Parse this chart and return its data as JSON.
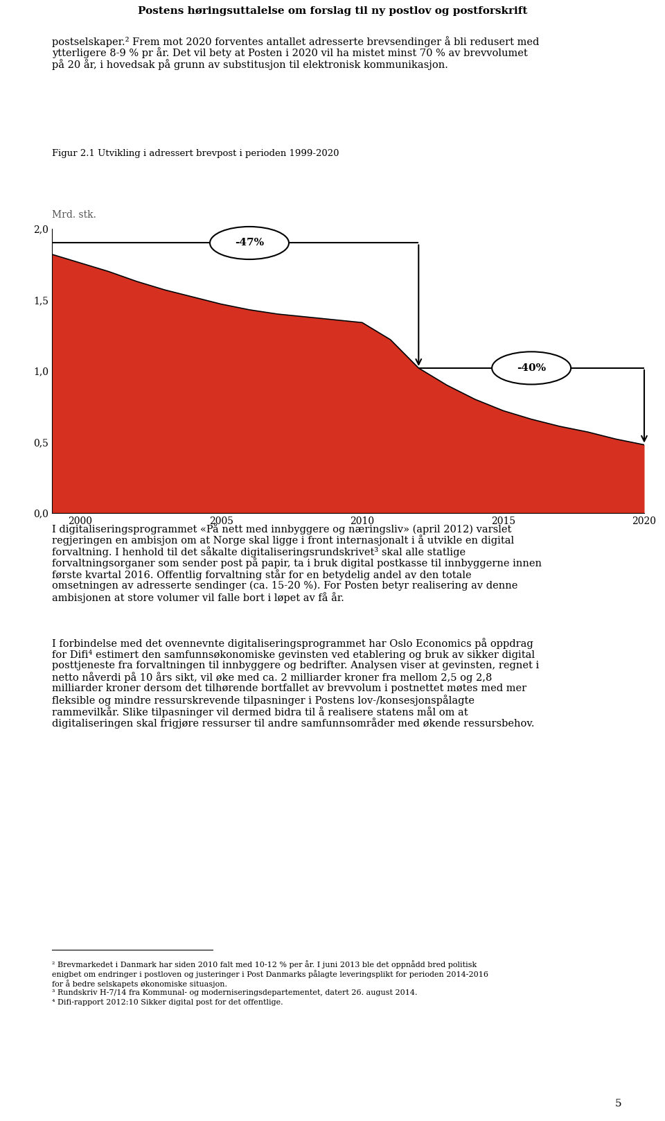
{
  "title_header": "Postens høringsuttalelse om forslag til ny postlov og postforskrift",
  "fig_label": "Figur 2.1 Utvikling i adressert brevpost i perioden 1999-2020",
  "ylabel": "Mrd. stk.",
  "xlim": [
    1999,
    2020
  ],
  "ylim": [
    0.0,
    2.0
  ],
  "yticks": [
    0.0,
    0.5,
    1.0,
    1.5,
    2.0
  ],
  "ytick_labels": [
    "0,0",
    "0,5",
    "1,0",
    "1,5",
    "2,0"
  ],
  "xticks": [
    2000,
    2005,
    2010,
    2015,
    2020
  ],
  "area_color": "#d63020",
  "line_color": "#000000",
  "background_color": "#ffffff",
  "header_bg": "#c8c8c8",
  "annotation1_text": "-47%",
  "annotation2_text": "-40%",
  "para1_line1": "postselskaper.² Frem mot 2020 forventes antallet adresserte brevsendinger å bli redusert med",
  "para1_line2": "ytterligere 8-9 % pr år. Det vil bety at Posten i 2020 vil ha mistet minst 70 % av brevvolumet",
  "para1_line3": "på 20 år, i hovedsak på grunn av substitusjon til elektronisk kommunikasjon.",
  "para2_line1": "I digitaliseringsprogrammet «På nett med innbyggere og næringsliv» (april 2012) varslet",
  "para2_line2": "regjeringen en ambisjon om at Norge skal ligge i front internasjonalt i å utvikle en digital",
  "para2_line3": "forvaltning. I henhold til det såkalte digitaliseringsrundskrivet³ skal alle statlige",
  "para2_line4": "forvaltningsorganer som sender post på papir, ta i bruk digital postkasse til innbyggerne innen",
  "para2_line5": "første kvartal 2016. Offentlig forvaltning står for en betydelig andel av den totale",
  "para2_line6": "omsetningen av adresserte sendinger (ca. 15-20 %). For Posten betyr realisering av denne",
  "para2_line7": "ambisjonen at store volumer vil falle bort i løpet av få år.",
  "para3_line1": "I forbindelse med det ovennevnte digitaliseringsprogrammet har Oslo Economics på oppdrag",
  "para3_line2": "for Difi⁴ estimert den samfunnsøkonomiske gevinsten ved etablering og bruk av sikker digital",
  "para3_line3": "posttjeneste fra forvaltningen til innbyggere og bedrifter. Analysen viser at gevinsten, regnet i",
  "para3_line4": "netto nåverdi på 10 års sikt, vil øke med ca. 2 milliarder kroner fra mellom 2,5 og 2,8",
  "para3_line5": "milliarder kroner dersom det tilhørende bortfallet av brevvolum i postnettet møtes med mer",
  "para3_line6": "fleksible og mindre ressurskrevende tilpasninger i Postens lov-/konsesjonspålagte",
  "para3_line7": "rammevilkår. Slike tilpasninger vil dermed bidra til å realisere statens mål om at",
  "para3_line8": "digitaliseringen skal frigjøre ressurser til andre samfunnsområder med økende ressursbehov.",
  "fn1": "² Brevmarkedet i Danmark har siden 2010 falt med 10-12 % per år. I juni 2013 ble det oppnådd bred politisk",
  "fn2": "enigbet om endringer i postloven og justeringer i Post Danmarks pålagte leveringsplikt for perioden 2014-2016",
  "fn3": "for å bedre selskapets økonomiske situasjon.",
  "fn4": "³ Rundskriv H-7/14 fra Kommunal- og moderniseringsdepartementet, datert 26. august 2014.",
  "fn5": "⁴ Difi-rapport 2012:10 Sikker digital post for det offentlige.",
  "page_number": "5",
  "chart_data_x": [
    1999,
    2000,
    2001,
    2002,
    2003,
    2004,
    2005,
    2006,
    2007,
    2008,
    2009,
    2010,
    2011,
    2012,
    2013,
    2014,
    2015,
    2016,
    2017,
    2018,
    2019,
    2020
  ],
  "chart_data_y": [
    1.82,
    1.76,
    1.7,
    1.63,
    1.57,
    1.52,
    1.47,
    1.43,
    1.4,
    1.38,
    1.36,
    1.34,
    1.22,
    1.02,
    0.9,
    0.8,
    0.72,
    0.66,
    0.61,
    0.57,
    0.52,
    0.48
  ]
}
